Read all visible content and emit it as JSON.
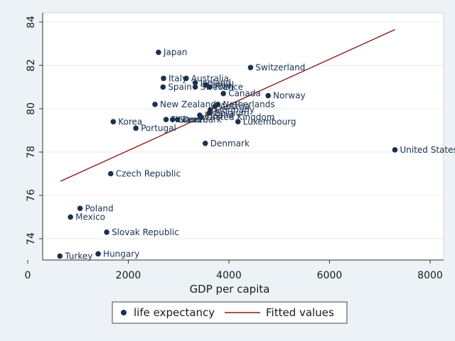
{
  "chart_data": {
    "type": "scatter",
    "title": "",
    "xlabel": "GDP per capita",
    "ylabel": "",
    "xlim": [
      0,
      8000
    ],
    "ylim": [
      72.8,
      84
    ],
    "xticks": [
      0,
      2000,
      4000,
      6000,
      8000
    ],
    "yticks": [
      74,
      76,
      78,
      80,
      82,
      84
    ],
    "xtick_labels": [
      "0",
      "2000",
      "4000",
      "6000",
      "8000"
    ],
    "ytick_labels": [
      "74",
      "76",
      "78",
      "80",
      "82",
      "84"
    ],
    "grid": true,
    "legend": {
      "placement": "bottom",
      "entries": [
        "life expectancy",
        "Fitted values"
      ]
    },
    "colors": {
      "background": "#ecf2f5",
      "plot_bg": "#ffffff",
      "grid": "#e3eaef",
      "marker": "#1a3150",
      "fit_line": "#8b1a1a"
    },
    "fitted_line": {
      "x": [
        650,
        7300
      ],
      "y": [
        76.65,
        83.65
      ]
    },
    "points": [
      {
        "label": "Japan",
        "x": 2600,
        "y": 82.6
      },
      {
        "label": "Switzerland",
        "x": 4430,
        "y": 81.9
      },
      {
        "label": "Italy",
        "x": 2700,
        "y": 81.4
      },
      {
        "label": "Australia",
        "x": 3150,
        "y": 81.4
      },
      {
        "label": "Iceland",
        "x": 3330,
        "y": 81.2
      },
      {
        "label": "Israel",
        "x": 3540,
        "y": 81.1
      },
      {
        "label": "Spain",
        "x": 2690,
        "y": 81.0
      },
      {
        "label": "Sweden",
        "x": 3330,
        "y": 81.0
      },
      {
        "label": "France",
        "x": 3620,
        "y": 81.0
      },
      {
        "label": "Canada",
        "x": 3890,
        "y": 80.7
      },
      {
        "label": "Norway",
        "x": 4780,
        "y": 80.6
      },
      {
        "label": "New Zealand",
        "x": 2530,
        "y": 80.2
      },
      {
        "label": "Netherlands",
        "x": 3780,
        "y": 80.2
      },
      {
        "label": "Austria",
        "x": 3720,
        "y": 80.1
      },
      {
        "label": "Germany",
        "x": 3630,
        "y": 79.95
      },
      {
        "label": "Belgium",
        "x": 3610,
        "y": 79.8
      },
      {
        "label": "Ireland",
        "x": 3420,
        "y": 79.7
      },
      {
        "label": "United Kingdom",
        "x": 3450,
        "y": 79.6
      },
      {
        "label": "Korea",
        "x": 1700,
        "y": 79.4
      },
      {
        "label": "Luxembourg",
        "x": 4180,
        "y": 79.4
      },
      {
        "label": "Finland",
        "x": 2750,
        "y": 79.5
      },
      {
        "label": "Greece",
        "x": 2880,
        "y": 79.5
      },
      {
        "label": "Denmark",
        "x": 2980,
        "y": 79.5
      },
      {
        "label": "Portugal",
        "x": 2150,
        "y": 79.1
      },
      {
        "label": "Denmark",
        "x": 3530,
        "y": 78.4
      },
      {
        "label": "United States",
        "x": 7300,
        "y": 78.1
      },
      {
        "label": "Czech Republic",
        "x": 1650,
        "y": 77.0
      },
      {
        "label": "Poland",
        "x": 1040,
        "y": 75.4
      },
      {
        "label": "Mexico",
        "x": 850,
        "y": 75.0
      },
      {
        "label": "Slovak Republic",
        "x": 1570,
        "y": 74.3
      },
      {
        "label": "Hungary",
        "x": 1400,
        "y": 73.3
      },
      {
        "label": "Turkey",
        "x": 640,
        "y": 73.2
      }
    ]
  }
}
